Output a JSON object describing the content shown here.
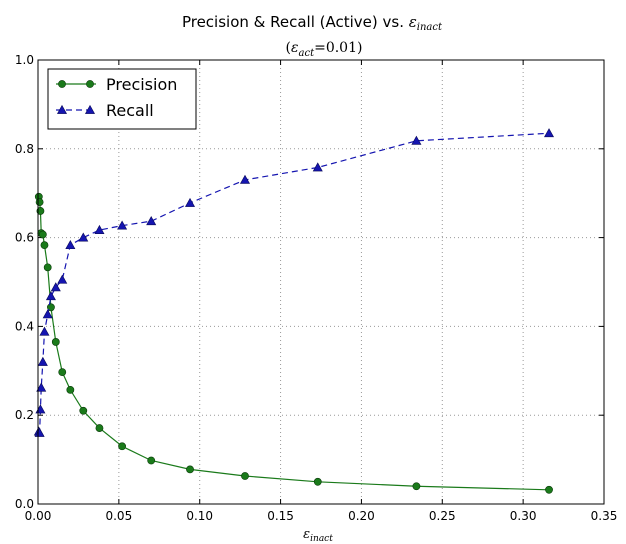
{
  "chart_data": {
    "type": "line",
    "title": "Precision & Recall (Active) vs. ",
    "title_symbol": "ε",
    "title_symbol_sub": "inact",
    "subtitle_open": "(",
    "subtitle_symbol": "ε",
    "subtitle_symbol_sub": "act",
    "subtitle_value": "=0.01)",
    "xlabel": "ε",
    "xlabel_sub": "inact",
    "ylabel": "",
    "xlim": [
      0,
      0.35
    ],
    "ylim": [
      0,
      1.0
    ],
    "xticks": [
      0.0,
      0.05,
      0.1,
      0.15,
      0.2,
      0.25,
      0.3,
      0.35
    ],
    "xtick_labels": [
      "0.00",
      "0.05",
      "0.10",
      "0.15",
      "0.20",
      "0.25",
      "0.30",
      "0.35"
    ],
    "yticks": [
      0.0,
      0.2,
      0.4,
      0.6,
      0.8,
      1.0
    ],
    "ytick_labels": [
      "0.0",
      "0.2",
      "0.4",
      "0.6",
      "0.8",
      "1.0"
    ],
    "grid": true,
    "legend_position": "top-left",
    "series": [
      {
        "name": "Precision",
        "color": "#1a7a1a",
        "line_style": "solid",
        "marker": "circle",
        "points": [
          [
            0.0005,
            0.692
          ],
          [
            0.001,
            0.68
          ],
          [
            0.0015,
            0.66
          ],
          [
            0.002,
            0.61
          ],
          [
            0.003,
            0.607
          ],
          [
            0.004,
            0.583
          ],
          [
            0.006,
            0.533
          ],
          [
            0.008,
            0.443
          ],
          [
            0.011,
            0.365
          ],
          [
            0.015,
            0.297
          ],
          [
            0.02,
            0.257
          ],
          [
            0.028,
            0.21
          ],
          [
            0.038,
            0.171
          ],
          [
            0.052,
            0.13
          ],
          [
            0.07,
            0.098
          ],
          [
            0.094,
            0.078
          ],
          [
            0.128,
            0.063
          ],
          [
            0.173,
            0.05
          ],
          [
            0.234,
            0.04
          ],
          [
            0.316,
            0.032
          ]
        ]
      },
      {
        "name": "Recall",
        "color": "#1515b0",
        "line_style": "dashed",
        "marker": "triangle",
        "points": [
          [
            0.0005,
            0.163
          ],
          [
            0.001,
            0.16
          ],
          [
            0.0015,
            0.213
          ],
          [
            0.002,
            0.262
          ],
          [
            0.003,
            0.32
          ],
          [
            0.004,
            0.388
          ],
          [
            0.006,
            0.427
          ],
          [
            0.008,
            0.468
          ],
          [
            0.011,
            0.488
          ],
          [
            0.015,
            0.505
          ],
          [
            0.02,
            0.583
          ],
          [
            0.028,
            0.6
          ],
          [
            0.038,
            0.617
          ],
          [
            0.052,
            0.627
          ],
          [
            0.07,
            0.637
          ],
          [
            0.094,
            0.678
          ],
          [
            0.128,
            0.73
          ],
          [
            0.173,
            0.758
          ],
          [
            0.234,
            0.818
          ],
          [
            0.316,
            0.835
          ]
        ]
      }
    ]
  }
}
